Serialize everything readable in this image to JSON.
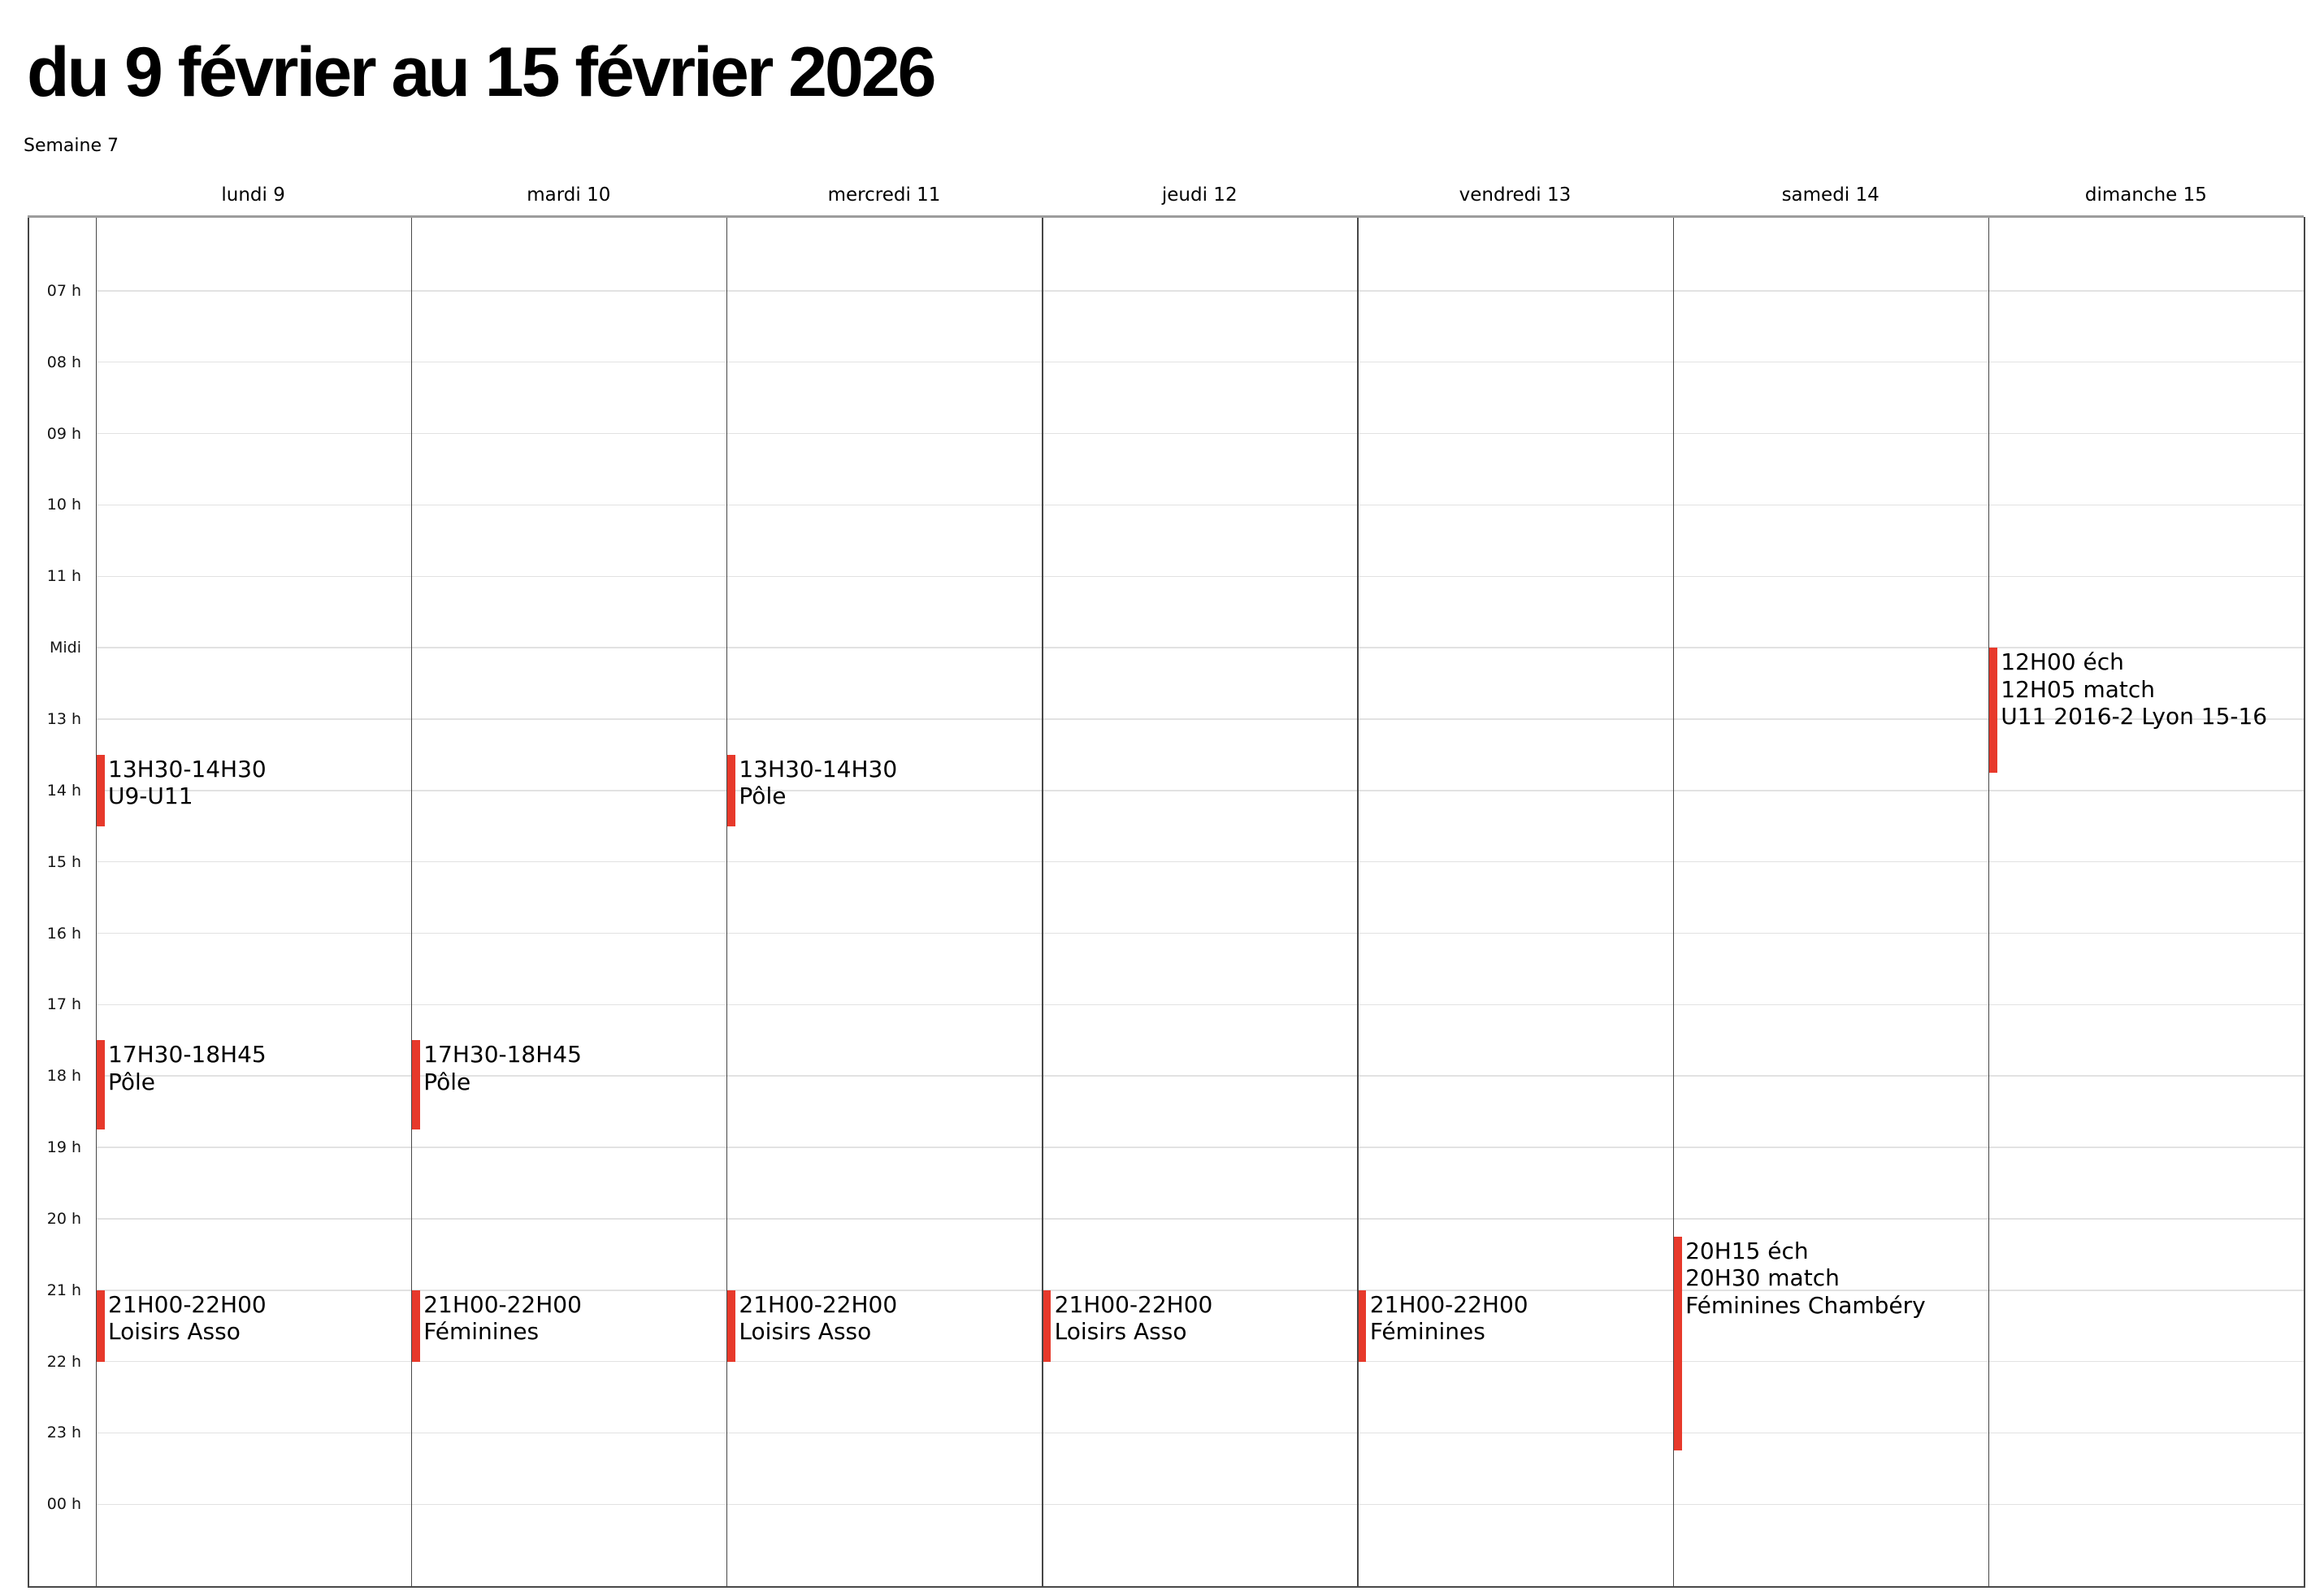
{
  "header": {
    "title": "du 9 février au 15 février 2026",
    "week_label": "Semaine 7"
  },
  "calendar": {
    "day_headers": [
      "lundi 9",
      "mardi 10",
      "mercredi 11",
      "jeudi 12",
      "vendredi 13",
      "samedi 14",
      "dimanche 15"
    ],
    "hour_labels": [
      "07 h",
      "08 h",
      "09 h",
      "10 h",
      "11 h",
      "Midi",
      "13 h",
      "14 h",
      "15 h",
      "16 h",
      "17 h",
      "18 h",
      "19 h",
      "20 h",
      "21 h",
      "22 h",
      "23 h",
      "00 h"
    ],
    "first_hour": 7,
    "events": [
      {
        "day": 0,
        "start": "13:30",
        "end": "14:30",
        "lines": [
          "13H30-14H30",
          "U9-U11"
        ]
      },
      {
        "day": 0,
        "start": "17:30",
        "end": "18:45",
        "lines": [
          "17H30-18H45",
          "Pôle"
        ]
      },
      {
        "day": 0,
        "start": "21:00",
        "end": "22:00",
        "lines": [
          "21H00-22H00",
          "Loisirs Asso"
        ]
      },
      {
        "day": 1,
        "start": "17:30",
        "end": "18:45",
        "lines": [
          "17H30-18H45",
          "Pôle"
        ]
      },
      {
        "day": 1,
        "start": "21:00",
        "end": "22:00",
        "lines": [
          "21H00-22H00",
          "Féminines"
        ]
      },
      {
        "day": 2,
        "start": "13:30",
        "end": "14:30",
        "lines": [
          "13H30-14H30",
          "Pôle"
        ]
      },
      {
        "day": 2,
        "start": "21:00",
        "end": "22:00",
        "lines": [
          "21H00-22H00",
          "Loisirs Asso"
        ]
      },
      {
        "day": 3,
        "start": "21:00",
        "end": "22:00",
        "lines": [
          "21H00-22H00",
          "Loisirs Asso"
        ]
      },
      {
        "day": 4,
        "start": "21:00",
        "end": "22:00",
        "lines": [
          "21H00-22H00",
          "Féminines"
        ]
      },
      {
        "day": 5,
        "start": "20:15",
        "end": "23:15",
        "lines": [
          "20H15 éch",
          "20H30 match",
          "Féminines Chambéry"
        ]
      },
      {
        "day": 6,
        "start": "12:00",
        "end": "13:45",
        "lines": [
          "12H00 éch",
          "12H05 match",
          "U11 2016-2 Lyon 15-16"
        ]
      }
    ],
    "colors": {
      "event_bar": "#e7392b",
      "hour_line": "#e2e2e2",
      "divider": "#474747",
      "top_border": "#9c9c9c",
      "bottom_border": "#484848",
      "text": "#000000"
    }
  }
}
